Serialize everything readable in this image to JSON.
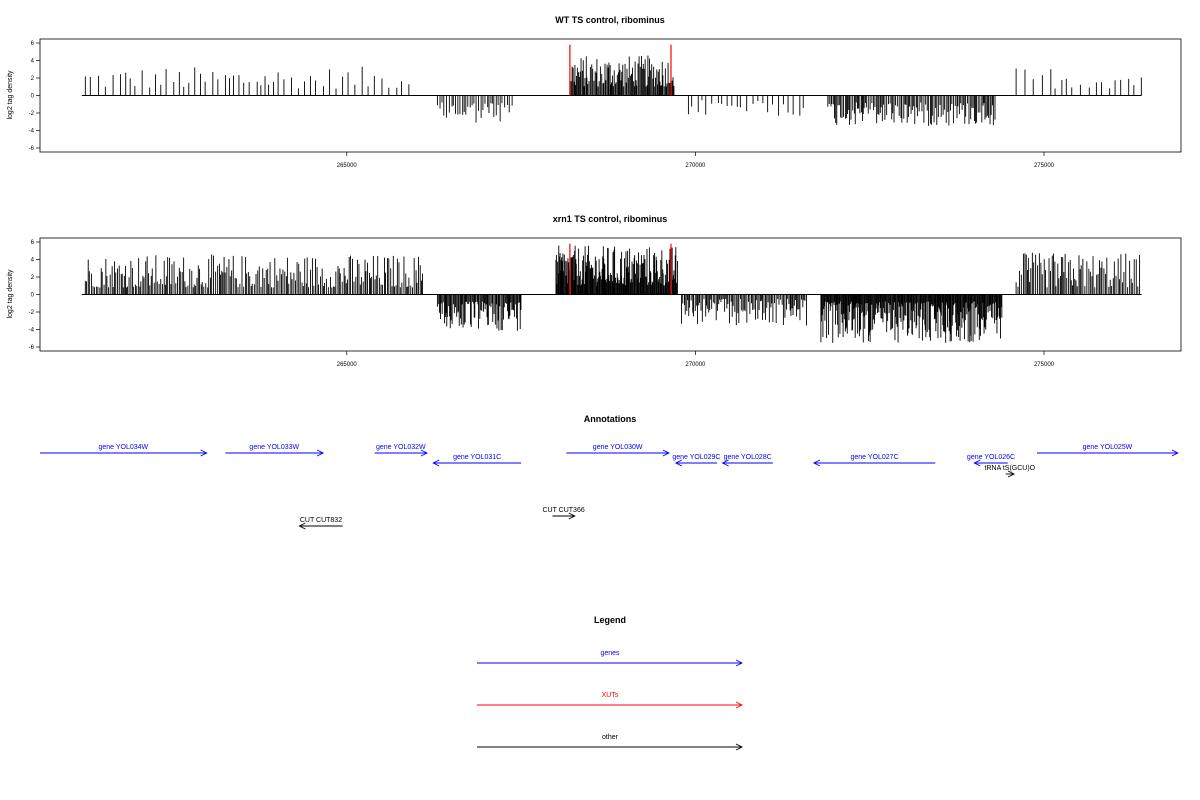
{
  "colors": {
    "gene": "#0000ff",
    "xut": "#ff0000",
    "other": "#000000",
    "axis": "#000000"
  },
  "chart_data": [
    {
      "type": "bar",
      "title": "WT TS control, ribominus",
      "ylabel": "log2 tag density",
      "ylim": [
        -6,
        6
      ],
      "yticks": [
        6,
        4,
        2,
        0,
        -2,
        -4,
        -6
      ],
      "xlim": [
        260600,
        276965
      ],
      "xticks": [
        265000,
        270000,
        275000
      ],
      "xtick_labels": [
        "265000",
        "270000",
        "275000"
      ],
      "baseline_x": [
        261200,
        276400
      ],
      "xut_markers": [
        {
          "x": 268200,
          "y": 5.8
        },
        {
          "x": 269650,
          "y": 5.8
        }
      ],
      "series_spec": [
        {
          "from": 261250,
          "to": 266000,
          "step": 85,
          "sign": 1,
          "min": 0.8,
          "max": 3.3
        },
        {
          "from": 266300,
          "to": 267400,
          "step": 30,
          "sign": -1,
          "min": 0.8,
          "max": 3.2
        },
        {
          "from": 268200,
          "to": 269700,
          "step": 14,
          "sign": 1,
          "min": 1.0,
          "max": 4.6
        },
        {
          "from": 269900,
          "to": 271600,
          "step": 70,
          "sign": -1,
          "min": 0.5,
          "max": 2.4
        },
        {
          "from": 271900,
          "to": 274300,
          "step": 20,
          "sign": -1,
          "min": 0.8,
          "max": 3.5
        },
        {
          "from": 274600,
          "to": 276400,
          "step": 100,
          "sign": 1,
          "min": 0.8,
          "max": 3.4
        }
      ]
    },
    {
      "type": "bar",
      "title": "xrn1 TS control, ribominus",
      "ylabel": "log2 tag density",
      "ylim": [
        -6,
        6
      ],
      "yticks": [
        6,
        4,
        2,
        0,
        -2,
        -4,
        -6
      ],
      "xlim": [
        260600,
        276965
      ],
      "xticks": [
        265000,
        270000,
        275000
      ],
      "xtick_labels": [
        "265000",
        "270000",
        "275000"
      ],
      "baseline_x": [
        261200,
        276400
      ],
      "xut_markers": [
        {
          "x": 268200,
          "y": 5.8
        },
        {
          "x": 269650,
          "y": 5.8
        }
      ],
      "series_spec": [
        {
          "from": 261250,
          "to": 266100,
          "step": 22,
          "sign": 1,
          "min": 0.8,
          "max": 4.6
        },
        {
          "from": 266300,
          "to": 267500,
          "step": 14,
          "sign": -1,
          "min": 0.8,
          "max": 4.2
        },
        {
          "from": 268000,
          "to": 269750,
          "step": 10,
          "sign": 1,
          "min": 1.0,
          "max": 5.6
        },
        {
          "from": 269800,
          "to": 271600,
          "step": 18,
          "sign": -1,
          "min": 0.5,
          "max": 3.6
        },
        {
          "from": 271800,
          "to": 274400,
          "step": 10,
          "sign": -1,
          "min": 0.8,
          "max": 5.6
        },
        {
          "from": 274600,
          "to": 276400,
          "step": 22,
          "sign": 1,
          "min": 0.8,
          "max": 4.8
        }
      ]
    }
  ],
  "annotations": {
    "title": "Annotations",
    "features": [
      {
        "label": "gene YOL034W",
        "kind": "gene",
        "start": 260600,
        "end": 262990,
        "strand": "+",
        "row": 0
      },
      {
        "label": "gene YOL033W",
        "kind": "gene",
        "start": 263260,
        "end": 264660,
        "strand": "+",
        "row": 0
      },
      {
        "label": "gene YOL032W",
        "kind": "gene",
        "start": 265400,
        "end": 266150,
        "strand": "+",
        "row": 0
      },
      {
        "label": "gene YOL031C",
        "kind": "gene",
        "start": 266240,
        "end": 267500,
        "strand": "-",
        "row": 1
      },
      {
        "label": "gene YOL030W",
        "kind": "gene",
        "start": 268150,
        "end": 269620,
        "strand": "+",
        "row": 0
      },
      {
        "label": "gene YOL029C",
        "kind": "gene",
        "start": 269720,
        "end": 270310,
        "strand": "-",
        "row": 1
      },
      {
        "label": "gene YOL028C",
        "kind": "gene",
        "start": 270390,
        "end": 271110,
        "strand": "-",
        "row": 1
      },
      {
        "label": "gene YOL027C",
        "kind": "gene",
        "start": 271700,
        "end": 273440,
        "strand": "-",
        "row": 1
      },
      {
        "label": "gene YOL026C",
        "kind": "gene",
        "start": 274000,
        "end": 274480,
        "strand": "-",
        "row": 1
      },
      {
        "label": "tRNA tS(GCU)O",
        "kind": "other",
        "start": 274450,
        "end": 274570,
        "strand": "+",
        "row": 2
      },
      {
        "label": "gene YOL025W",
        "kind": "gene",
        "start": 274900,
        "end": 276920,
        "strand": "+",
        "row": 0
      },
      {
        "label": "CUT CUT832",
        "kind": "other",
        "start": 264320,
        "end": 264940,
        "strand": "-",
        "row": 3
      },
      {
        "label": "CUT CUT366",
        "kind": "other",
        "start": 267950,
        "end": 268270,
        "strand": "+",
        "row": 4
      }
    ]
  },
  "legend": {
    "title": "Legend",
    "items": [
      {
        "label": "genes",
        "kind": "gene"
      },
      {
        "label": "XUTs",
        "kind": "xut"
      },
      {
        "label": "other",
        "kind": "other"
      }
    ]
  }
}
